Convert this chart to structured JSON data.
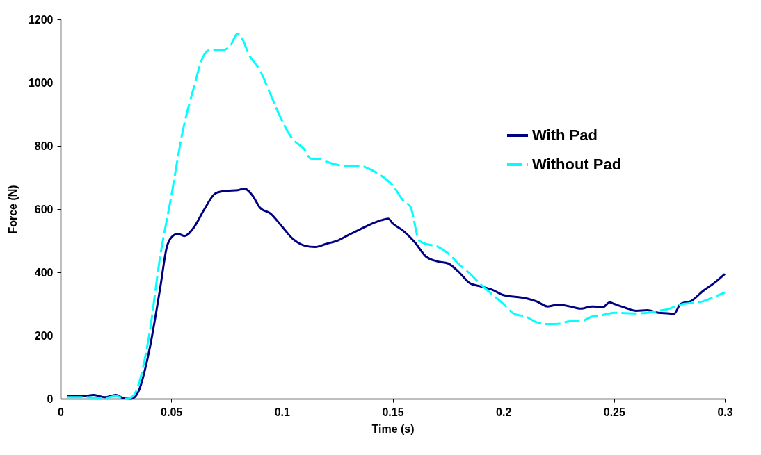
{
  "chart_data": {
    "type": "line",
    "xlabel": "Time (s)",
    "ylabel": "Force (N)",
    "xlim": [
      0,
      0.3
    ],
    "xticks": [
      0,
      0.05,
      0.1,
      0.15,
      0.2,
      0.25,
      0.3
    ],
    "ylim": [
      0,
      1200
    ],
    "yticks": [
      0,
      200,
      400,
      600,
      800,
      1000,
      1200
    ],
    "grid": false,
    "legend": "right",
    "marker": "none",
    "series": [
      {
        "name": "With Pad",
        "color": "#000080",
        "line_style": "solid",
        "x": [
          0.003,
          0.01,
          0.015,
          0.02,
          0.025,
          0.028,
          0.032,
          0.035,
          0.04,
          0.045,
          0.048,
          0.05,
          0.053,
          0.056,
          0.06,
          0.065,
          0.07,
          0.075,
          0.08,
          0.083,
          0.087,
          0.09,
          0.095,
          0.1,
          0.105,
          0.11,
          0.115,
          0.12,
          0.125,
          0.13,
          0.135,
          0.14,
          0.145,
          0.148,
          0.15,
          0.155,
          0.16,
          0.165,
          0.17,
          0.175,
          0.18,
          0.185,
          0.19,
          0.195,
          0.2,
          0.21,
          0.215,
          0.22,
          0.225,
          0.23,
          0.235,
          0.24,
          0.245,
          0.248,
          0.25,
          0.255,
          0.26,
          0.265,
          0.27,
          0.275,
          0.277,
          0.28,
          0.285,
          0.29,
          0.295,
          0.3
        ],
        "values": [
          8,
          8,
          12,
          5,
          12,
          3,
          0,
          20,
          150,
          350,
          480,
          510,
          522,
          515,
          540,
          600,
          650,
          658,
          660,
          665,
          640,
          605,
          585,
          545,
          505,
          485,
          480,
          490,
          500,
          518,
          535,
          552,
          565,
          570,
          555,
          530,
          495,
          450,
          435,
          428,
          400,
          365,
          355,
          345,
          328,
          318,
          308,
          292,
          298,
          292,
          285,
          292,
          290,
          305,
          300,
          288,
          278,
          280,
          272,
          270,
          268,
          300,
          310,
          340,
          365,
          395
        ]
      },
      {
        "name": "Without Pad",
        "color": "#00ffff",
        "line_style": "dashed",
        "x": [
          0.003,
          0.01,
          0.02,
          0.025,
          0.03,
          0.033,
          0.035,
          0.04,
          0.045,
          0.05,
          0.055,
          0.06,
          0.065,
          0.068,
          0.072,
          0.076,
          0.08,
          0.082,
          0.085,
          0.09,
          0.095,
          0.1,
          0.105,
          0.11,
          0.113,
          0.117,
          0.12,
          0.125,
          0.13,
          0.135,
          0.14,
          0.145,
          0.15,
          0.155,
          0.158,
          0.162,
          0.165,
          0.17,
          0.175,
          0.18,
          0.185,
          0.19,
          0.195,
          0.2,
          0.205,
          0.21,
          0.215,
          0.22,
          0.225,
          0.23,
          0.235,
          0.24,
          0.245,
          0.25,
          0.26,
          0.265,
          0.27,
          0.275,
          0.28,
          0.285,
          0.29,
          0.295,
          0.3
        ],
        "values": [
          5,
          5,
          3,
          8,
          0,
          10,
          40,
          200,
          450,
          640,
          840,
          980,
          1090,
          1105,
          1102,
          1110,
          1155,
          1140,
          1090,
          1040,
          960,
          880,
          820,
          790,
          760,
          758,
          750,
          740,
          735,
          737,
          725,
          705,
          675,
          625,
          608,
          500,
          490,
          482,
          460,
          425,
          395,
          360,
          330,
          300,
          268,
          260,
          242,
          236,
          237,
          245,
          245,
          260,
          265,
          272,
          270,
          272,
          278,
          285,
          298,
          303,
          308,
          322,
          336
        ]
      }
    ]
  }
}
